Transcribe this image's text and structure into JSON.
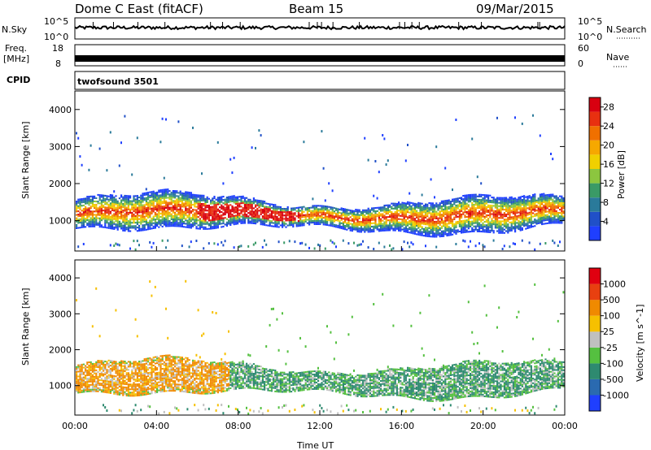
{
  "header": {
    "station": "Dome C East (fitACF)",
    "beam": "Beam 15",
    "date": "09/Mar/2015"
  },
  "noise_panel": {
    "left_label": "N.Sky",
    "right_label": "N.Search",
    "left_ticks": [
      "10^5",
      "10^0"
    ],
    "right_ticks": [
      "10^5",
      "10^0"
    ]
  },
  "freq_panel": {
    "left_label_1": "Freq.",
    "left_label_2": "[MHz]",
    "right_label": "Nave",
    "left_ticks": [
      "18",
      "8"
    ],
    "right_ticks": [
      "60",
      "0"
    ]
  },
  "cpid": {
    "label": "CPID",
    "program": "twofsound 3501"
  },
  "x_axis": {
    "label": "Time UT",
    "ticks": [
      "00:00",
      "04:00",
      "08:00",
      "12:00",
      "16:00",
      "20:00",
      "00:00"
    ]
  },
  "chart_data": [
    {
      "type": "heatmap",
      "quantity": "Power",
      "ylabel": "Slant Range [km]",
      "xlabel": "Time UT",
      "ylim": [
        180,
        4500
      ],
      "xlim_hours": [
        0,
        24
      ],
      "yticks": [
        "1000",
        "2000",
        "3000",
        "4000"
      ],
      "colorbar": {
        "label": "Power [dB]",
        "ticks": [
          "4",
          "8",
          "12",
          "16",
          "20",
          "24",
          "28"
        ],
        "range": [
          0,
          30
        ],
        "colors": [
          "#1f3fff",
          "#2050c8",
          "#2a7a9a",
          "#3a9a66",
          "#8cc63f",
          "#f0d000",
          "#f6a800",
          "#f07000",
          "#e83010",
          "#d80010"
        ]
      }
    },
    {
      "type": "heatmap",
      "quantity": "Velocity",
      "ylabel": "Slant Range [km]",
      "xlabel": "Time UT",
      "ylim": [
        180,
        4500
      ],
      "xlim_hours": [
        0,
        24
      ],
      "yticks": [
        "1000",
        "2000",
        "3000",
        "4000"
      ],
      "colorbar": {
        "label": "Velocity [m s^-1]",
        "ticks": [
          "1000",
          "500",
          "100",
          "25",
          "-25",
          "-100",
          "-500",
          "-1000"
        ],
        "colors": [
          "#1f3fff",
          "#2a6ab0",
          "#2e8a70",
          "#55c040",
          "#c0c0c0",
          "#f6c000",
          "#f08a00",
          "#e84010",
          "#e00010"
        ]
      }
    }
  ]
}
